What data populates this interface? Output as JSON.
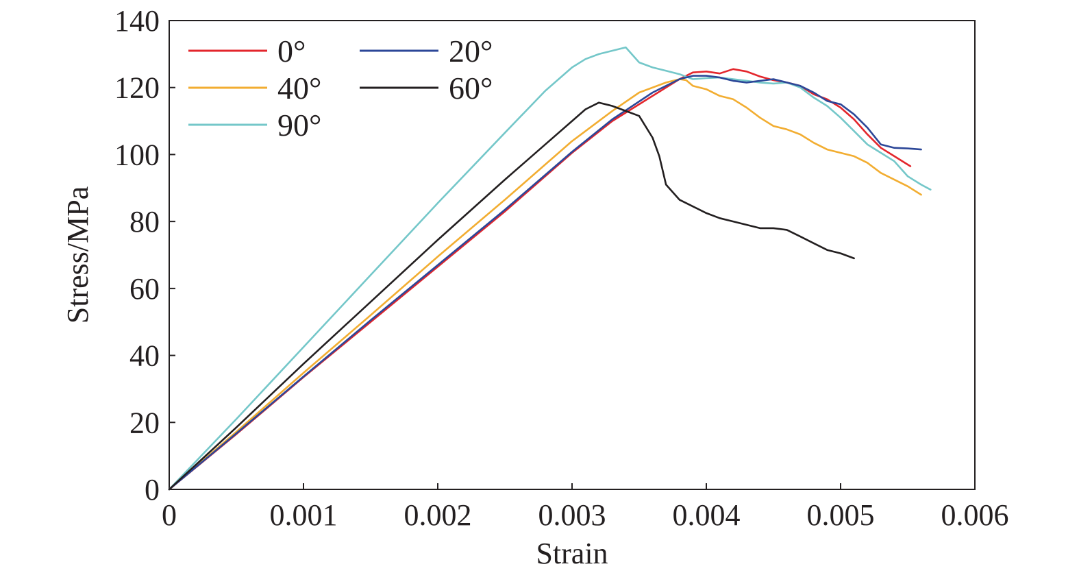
{
  "chart_data": {
    "type": "line",
    "title": "",
    "xlabel": "Strain",
    "ylabel": "Stress/MPa",
    "xlim": [
      0,
      0.006
    ],
    "ylim": [
      0,
      140
    ],
    "x_ticks": [
      0,
      0.001,
      0.002,
      0.003,
      0.004,
      0.005,
      0.006
    ],
    "x_tick_labels": [
      "0",
      "0.001",
      "0.002",
      "0.003",
      "0.004",
      "0.005",
      "0.006"
    ],
    "y_ticks": [
      0,
      20,
      40,
      60,
      80,
      100,
      120,
      140
    ],
    "y_tick_labels": [
      "0",
      "20",
      "40",
      "60",
      "80",
      "100",
      "120",
      "140"
    ],
    "grid": false,
    "legend_position": "top-left",
    "series": [
      {
        "name": "0°",
        "color": "#e3262c",
        "points": [
          [
            0,
            0
          ],
          [
            0.0005,
            16.5
          ],
          [
            0.001,
            33.5
          ],
          [
            0.0015,
            50
          ],
          [
            0.002,
            66.5
          ],
          [
            0.0025,
            83
          ],
          [
            0.003,
            100.5
          ],
          [
            0.0033,
            110
          ],
          [
            0.0036,
            117.5
          ],
          [
            0.0038,
            122.5
          ],
          [
            0.0039,
            124.5
          ],
          [
            0.004,
            124.8
          ],
          [
            0.0041,
            124.2
          ],
          [
            0.0042,
            125.5
          ],
          [
            0.0043,
            124.8
          ],
          [
            0.0044,
            123.3
          ],
          [
            0.0045,
            122.2
          ],
          [
            0.0046,
            121.5
          ],
          [
            0.0047,
            120.5
          ],
          [
            0.0048,
            118
          ],
          [
            0.0049,
            116.5
          ],
          [
            0.005,
            114
          ],
          [
            0.0051,
            110.5
          ],
          [
            0.0052,
            106
          ],
          [
            0.0053,
            102
          ],
          [
            0.0054,
            99.5
          ],
          [
            0.0055,
            97
          ],
          [
            0.00552,
            96.5
          ]
        ]
      },
      {
        "name": "20°",
        "color": "#2c4798",
        "points": [
          [
            0,
            0
          ],
          [
            0.0005,
            16.7
          ],
          [
            0.001,
            33.7
          ],
          [
            0.0015,
            50.5
          ],
          [
            0.002,
            67
          ],
          [
            0.0025,
            83.5
          ],
          [
            0.003,
            100.8
          ],
          [
            0.0033,
            110.5
          ],
          [
            0.0036,
            118.5
          ],
          [
            0.0038,
            122.5
          ],
          [
            0.0039,
            123.5
          ],
          [
            0.004,
            123.5
          ],
          [
            0.0041,
            123
          ],
          [
            0.0042,
            122
          ],
          [
            0.0043,
            121.5
          ],
          [
            0.0044,
            122
          ],
          [
            0.0045,
            122.5
          ],
          [
            0.0046,
            121.5
          ],
          [
            0.0047,
            120.5
          ],
          [
            0.0048,
            118.5
          ],
          [
            0.0049,
            116
          ],
          [
            0.005,
            115
          ],
          [
            0.0051,
            112
          ],
          [
            0.0052,
            108
          ],
          [
            0.0053,
            103
          ],
          [
            0.0054,
            102
          ],
          [
            0.0055,
            101.8
          ],
          [
            0.0056,
            101.5
          ]
        ]
      },
      {
        "name": "40°",
        "color": "#f2ad31",
        "points": [
          [
            0,
            0
          ],
          [
            0.0005,
            17.2
          ],
          [
            0.001,
            34.8
          ],
          [
            0.0015,
            52
          ],
          [
            0.002,
            69.5
          ],
          [
            0.0025,
            86.5
          ],
          [
            0.003,
            104
          ],
          [
            0.0033,
            113
          ],
          [
            0.0035,
            118.5
          ],
          [
            0.0037,
            121.5
          ],
          [
            0.0038,
            122.5
          ],
          [
            0.00385,
            122.2
          ],
          [
            0.0039,
            120.5
          ],
          [
            0.004,
            119.5
          ],
          [
            0.0041,
            117.5
          ],
          [
            0.0042,
            116.5
          ],
          [
            0.0043,
            114
          ],
          [
            0.0044,
            111
          ],
          [
            0.0045,
            108.5
          ],
          [
            0.0046,
            107.5
          ],
          [
            0.0047,
            106
          ],
          [
            0.0048,
            103.5
          ],
          [
            0.0049,
            101.5
          ],
          [
            0.005,
            100.5
          ],
          [
            0.0051,
            99.5
          ],
          [
            0.0052,
            97.5
          ],
          [
            0.0053,
            94.5
          ],
          [
            0.0054,
            92.5
          ],
          [
            0.0055,
            90.5
          ],
          [
            0.0056,
            88
          ]
        ]
      },
      {
        "name": "60°",
        "color": "#231f20",
        "points": [
          [
            0,
            0
          ],
          [
            0.0005,
            18.5
          ],
          [
            0.001,
            37.5
          ],
          [
            0.0015,
            56
          ],
          [
            0.002,
            74.5
          ],
          [
            0.0025,
            92.5
          ],
          [
            0.0028,
            103
          ],
          [
            0.003,
            110
          ],
          [
            0.0031,
            113.5
          ],
          [
            0.0032,
            115.5
          ],
          [
            0.0033,
            114.5
          ],
          [
            0.0034,
            113
          ],
          [
            0.0035,
            111.5
          ],
          [
            0.0036,
            105
          ],
          [
            0.00365,
            99.5
          ],
          [
            0.0037,
            91
          ],
          [
            0.0038,
            86.5
          ],
          [
            0.0039,
            84.5
          ],
          [
            0.004,
            82.5
          ],
          [
            0.0041,
            81
          ],
          [
            0.0042,
            80
          ],
          [
            0.0043,
            79
          ],
          [
            0.0044,
            78
          ],
          [
            0.0045,
            78
          ],
          [
            0.0046,
            77.5
          ],
          [
            0.0047,
            75.5
          ],
          [
            0.0048,
            73.5
          ],
          [
            0.0049,
            71.5
          ],
          [
            0.005,
            70.5
          ],
          [
            0.0051,
            69
          ]
        ]
      },
      {
        "name": "90°",
        "color": "#74c7c9",
        "points": [
          [
            0,
            0
          ],
          [
            0.0005,
            21
          ],
          [
            0.001,
            42.5
          ],
          [
            0.0015,
            64
          ],
          [
            0.002,
            85.5
          ],
          [
            0.0025,
            106.5
          ],
          [
            0.0028,
            119
          ],
          [
            0.003,
            126
          ],
          [
            0.0031,
            128.5
          ],
          [
            0.0032,
            130
          ],
          [
            0.0033,
            131
          ],
          [
            0.0034,
            132
          ],
          [
            0.0035,
            127.5
          ],
          [
            0.0036,
            126
          ],
          [
            0.0037,
            125
          ],
          [
            0.0038,
            124
          ],
          [
            0.0039,
            122.5
          ],
          [
            0.004,
            122.8
          ],
          [
            0.0041,
            123
          ],
          [
            0.0042,
            122.5
          ],
          [
            0.0043,
            122
          ],
          [
            0.0044,
            121.5
          ],
          [
            0.0045,
            121.2
          ],
          [
            0.0046,
            121.5
          ],
          [
            0.0047,
            120
          ],
          [
            0.0048,
            117
          ],
          [
            0.0049,
            114.5
          ],
          [
            0.005,
            111
          ],
          [
            0.0051,
            107
          ],
          [
            0.0052,
            103
          ],
          [
            0.0053,
            100.5
          ],
          [
            0.0054,
            98
          ],
          [
            0.0055,
            93.5
          ],
          [
            0.0056,
            91
          ],
          [
            0.00567,
            89.5
          ]
        ]
      }
    ]
  }
}
